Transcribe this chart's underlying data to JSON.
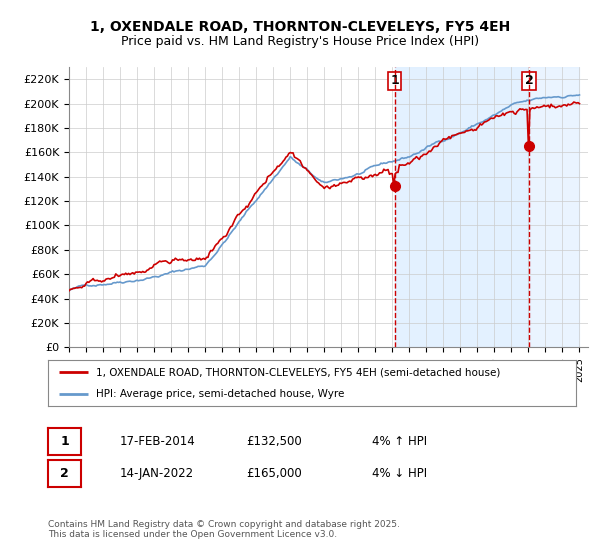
{
  "title_line1": "1, OXENDALE ROAD, THORNTON-CLEVELEYS, FY5 4EH",
  "title_line2": "Price paid vs. HM Land Registry's House Price Index (HPI)",
  "ylim": [
    0,
    230000
  ],
  "yticks": [
    0,
    20000,
    40000,
    60000,
    80000,
    100000,
    120000,
    140000,
    160000,
    180000,
    200000,
    220000
  ],
  "year_start": 1995,
  "year_end": 2025,
  "sale1_date": "17-FEB-2014",
  "sale1_price": 132500,
  "sale1_pct": "4%",
  "sale1_dir": "↑",
  "sale2_date": "14-JAN-2022",
  "sale2_price": 165000,
  "sale2_pct": "4%",
  "sale2_dir": "↓",
  "legend_line1": "1, OXENDALE ROAD, THORNTON-CLEVELEYS, FY5 4EH (semi-detached house)",
  "legend_line2": "HPI: Average price, semi-detached house, Wyre",
  "footer": "Contains HM Land Registry data © Crown copyright and database right 2025.\nThis data is licensed under the Open Government Licence v3.0.",
  "red_color": "#cc0000",
  "blue_color": "#6699cc",
  "dashed_color": "#cc0000",
  "background_plot": "#ffffff",
  "grid_color": "#cccccc",
  "highlight_fill": "#ddeeff"
}
